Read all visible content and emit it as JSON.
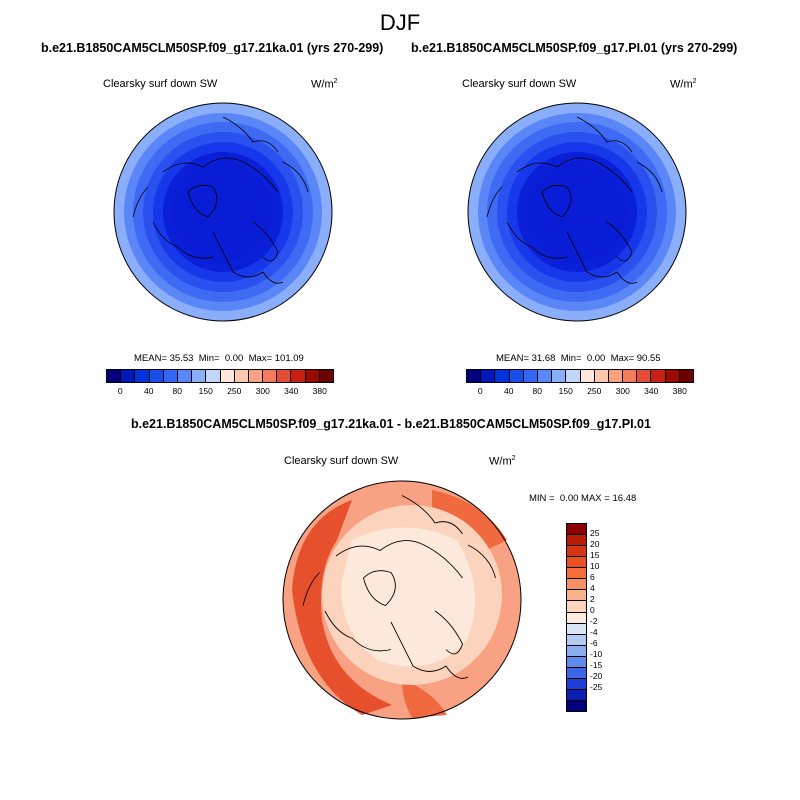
{
  "title": "DJF",
  "panels": [
    {
      "case": "b.e21.B1850CAM5CLM50SP.f09_g17.21ka.01 (yrs 270-299)",
      "variable": "Clearsky surf down SW",
      "units_base": "W/m",
      "units_exp": "2",
      "mean_label": "MEAN=",
      "mean": "35.53",
      "min_label": "Min=",
      "min": "0.00",
      "max_label": "Max=",
      "max": "101.09"
    },
    {
      "case": "b.e21.B1850CAM5CLM50SP.f09_g17.PI.01 (yrs 270-299)",
      "variable": "Clearsky surf down SW",
      "units_base": "W/m",
      "units_exp": "2",
      "mean_label": "MEAN=",
      "mean": "31.68",
      "min_label": "Min=",
      "min": "0.00",
      "max_label": "Max=",
      "max": "90.55"
    }
  ],
  "abs_colorbar": {
    "colors": [
      "#00007f",
      "#0019b8",
      "#0033d9",
      "#1a4fec",
      "#3366f5",
      "#5b86f7",
      "#8aaefa",
      "#c2d5fc",
      "#fde8db",
      "#fcc9ac",
      "#f8a283",
      "#f37b5e",
      "#e64c36",
      "#c82012",
      "#960c05",
      "#6a0000"
    ],
    "ticks": [
      "0",
      "40",
      "80",
      "150",
      "250",
      "300",
      "340",
      "380"
    ]
  },
  "diff_panel": {
    "case": "b.e21.B1850CAM5CLM50SP.f09_g17.21ka.01 - b.e21.B1850CAM5CLM50SP.f09_g17.PI.01",
    "variable": "Clearsky surf down SW",
    "units_base": "W/m",
    "units_exp": "2",
    "min_label": "MIN =",
    "min": "0.00",
    "max_label": "MAX =",
    "max": "16.48"
  },
  "diff_colorbar": {
    "colors": [
      "#8b0000",
      "#b81c05",
      "#d53512",
      "#ea5020",
      "#f46d3a",
      "#f79064",
      "#fab38f",
      "#fdd5bd",
      "#fdebde",
      "#d8e6f8",
      "#b2cbf4",
      "#8aaef0",
      "#5f8aea",
      "#3c66e3",
      "#1a3fd5",
      "#0a1fb0",
      "#00007f"
    ],
    "ticks": [
      "25",
      "20",
      "15",
      "10",
      "6",
      "4",
      "2",
      "0",
      "-2",
      "-4",
      "-6",
      "-10",
      "-15",
      "-20",
      "-25"
    ]
  },
  "map_colors": {
    "abs_rings": [
      "#0a1fd8",
      "#1637ea",
      "#2a50ef",
      "#3f6af4",
      "#5b86f7",
      "#8aaefa"
    ],
    "diff_center": "#fde8dc",
    "diff_light": "#fcd3bc",
    "diff_mid": "#f8a283",
    "diff_strong": "#f0693f",
    "diff_edge": "#e6502c"
  }
}
